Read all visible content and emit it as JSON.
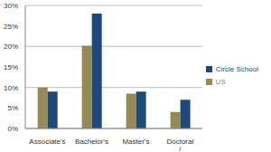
{
  "chart_data": {
    "type": "bar",
    "categories": [
      "Associate's",
      "Bachelor's",
      "Master's",
      "Doctoral / Professional"
    ],
    "series": [
      {
        "name": "US",
        "color": "#948A54",
        "values": [
          10,
          20.2,
          8.5,
          4
        ]
      },
      {
        "name": "Circle School",
        "color": "#1F497D",
        "values": [
          9,
          28,
          9,
          7
        ]
      }
    ],
    "ylim": [
      0,
      30
    ],
    "yticks": [
      {
        "value": 0,
        "label": "0%"
      },
      {
        "value": 5,
        "label": "5%"
      },
      {
        "value": 10,
        "label": "10%"
      },
      {
        "value": 15,
        "label": "15%"
      },
      {
        "value": 20,
        "label": "20%"
      },
      {
        "value": 25,
        "label": "25%"
      },
      {
        "value": 30,
        "label": "30%"
      }
    ],
    "grid": true,
    "legend": "right"
  }
}
